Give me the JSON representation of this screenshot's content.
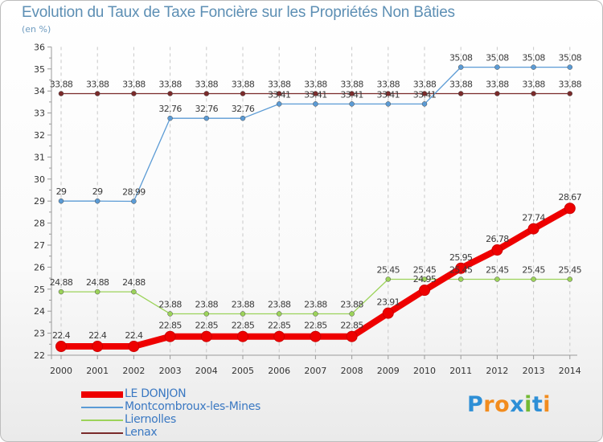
{
  "chart_data": {
    "type": "line",
    "title": "Evolution du Taux de Taxe Foncière sur les Propriétés Non Bâties",
    "ylabel": "(en %)",
    "xlabel": "",
    "ylim": [
      22,
      36
    ],
    "yticks": [
      22,
      23,
      24,
      25,
      26,
      27,
      28,
      29,
      30,
      31,
      32,
      33,
      34,
      35,
      36
    ],
    "grid": "vertical-dashed",
    "categories": [
      "2000",
      "2001",
      "2002",
      "2003",
      "2004",
      "2005",
      "2006",
      "2007",
      "2008",
      "2009",
      "2010",
      "2011",
      "2012",
      "2013",
      "2014"
    ],
    "series": [
      {
        "name": "Lenax",
        "color": "#7a2b2b",
        "values": [
          33.88,
          33.88,
          33.88,
          33.88,
          33.88,
          33.88,
          33.88,
          33.88,
          33.88,
          33.88,
          33.88,
          33.88,
          33.88,
          33.88,
          33.88
        ],
        "labels": [
          "33.88",
          "33.88",
          "33.88",
          "33.88",
          "33.88",
          "33.88",
          "33.88",
          "33.88",
          "33.88",
          "33.88",
          "33.88",
          "33.88",
          "33.88",
          "33.88",
          "33.88"
        ]
      },
      {
        "name": "Montcombroux-les-Mines",
        "color": "#5b9bd5",
        "values": [
          29,
          29,
          28.99,
          32.76,
          32.76,
          32.76,
          33.41,
          33.41,
          33.41,
          33.41,
          33.41,
          35.08,
          35.08,
          35.08,
          35.08
        ],
        "labels": [
          "29",
          "29",
          "28.99",
          "32.76",
          "32.76",
          "32.76",
          "33.41",
          "33.41",
          "33.41",
          "33.41",
          "33.41",
          "35.08",
          "35.08",
          "35.08",
          "35.08"
        ]
      },
      {
        "name": "Liernolles",
        "color": "#9cd35a",
        "values": [
          24.88,
          24.88,
          24.88,
          23.88,
          23.88,
          23.88,
          23.88,
          23.88,
          23.88,
          25.45,
          25.45,
          25.45,
          25.45,
          25.45,
          25.45
        ],
        "labels": [
          "24.88",
          "24.88",
          "24.88",
          "23.88",
          "23.88",
          "23.88",
          "23.88",
          "23.88",
          "23.88",
          "25.45",
          "25.45",
          "25.45",
          "25.45",
          "25.45",
          "25.45"
        ]
      },
      {
        "name": "LE DONJON",
        "color": "#ee0000",
        "values": [
          22.4,
          22.4,
          22.4,
          22.85,
          22.85,
          22.85,
          22.85,
          22.85,
          22.85,
          23.91,
          24.95,
          25.95,
          26.78,
          27.74,
          28.67
        ],
        "labels": [
          "22.4",
          "22.4",
          "22.4",
          "22.85",
          "22.85",
          "22.85",
          "22.85",
          "22.85",
          "22.85",
          "23.91",
          "24.95",
          "25.95",
          "26.78",
          "27.74",
          "28.67"
        ]
      }
    ],
    "legend": [
      "LE DONJON",
      "Montcombroux-les-Mines",
      "Liernolles",
      "Lenax"
    ],
    "legend_position": "bottom-left"
  },
  "legend_colors": [
    "#ee0000",
    "#5b9bd5",
    "#9cd35a",
    "#7a2b2b"
  ],
  "logo": {
    "text": "Proxiti",
    "letters": [
      "P",
      "r",
      "o",
      "x",
      "i",
      "t",
      "i"
    ],
    "colors": [
      "#2e8fd6",
      "#f28c1e",
      "#f28c1e",
      "#2e8fd6",
      "#73b935",
      "#2e8fd6",
      "#f28c1e"
    ]
  }
}
